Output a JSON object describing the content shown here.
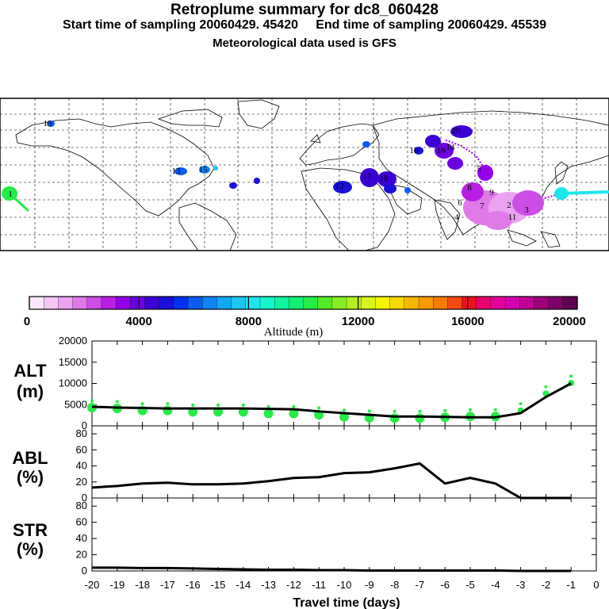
{
  "header": {
    "title": "Retroplume summary for dc8_060428",
    "subtitle": "Start time of sampling 20060429. 45420     End time of sampling 20060429. 45539",
    "meteo": "Meteorological data used is GFS"
  },
  "colorbar": {
    "label": "Altitude (m)",
    "ticks": [
      "0",
      "4000",
      "8000",
      "12000",
      "16000",
      "20000"
    ],
    "colors": [
      "#fbe6fb",
      "#f3c6f3",
      "#eba3f0",
      "#e07ae8",
      "#cc4ee6",
      "#b91fe3",
      "#9500ea",
      "#6d00e2",
      "#3b00d6",
      "#1a10dc",
      "#0030f0",
      "#0a5cf5",
      "#0f85f7",
      "#10a8f4",
      "#1ec6f2",
      "#1fe4ee",
      "#15f5cc",
      "#0ef4a0",
      "#12ef75",
      "#26ec48",
      "#54ec2a",
      "#86ee25",
      "#b5f01f",
      "#d9f41a",
      "#f8f500",
      "#f8d800",
      "#f8b800",
      "#f89a00",
      "#f87a00",
      "#f54a10",
      "#f01020",
      "#ea0070",
      "#e4009a",
      "#d400b0",
      "#c00096",
      "#a0007a",
      "#80006a",
      "#600050"
    ]
  },
  "map_labels": [
    {
      "text": "1"
    },
    {
      "text": "19"
    },
    {
      "text": "13"
    },
    {
      "text": "10"
    },
    {
      "text": "15"
    },
    {
      "text": "17"
    },
    {
      "text": "18"
    },
    {
      "text": "12"
    },
    {
      "text": "20"
    },
    {
      "text": "16"
    },
    {
      "text": "14"
    },
    {
      "text": "9"
    },
    {
      "text": "8"
    },
    {
      "text": "11"
    },
    {
      "text": "6"
    },
    {
      "text": "5"
    },
    {
      "text": "4"
    },
    {
      "text": "3"
    },
    {
      "text": "7"
    },
    {
      "text": "2"
    }
  ],
  "chart_data": {
    "type": "line",
    "x": [
      -20,
      -19,
      -18,
      -17,
      -16,
      -15,
      -14,
      -13,
      -12,
      -11,
      -10,
      -9,
      -8,
      -7,
      -6,
      -5,
      -4,
      -3,
      -2,
      -1
    ],
    "xlabel": "Travel time (days)",
    "x_tick_labels": [
      "-20",
      "-19",
      "-18",
      "-17",
      "-16",
      "-15",
      "-14",
      "-13",
      "-12",
      "-11",
      "-10",
      "-9",
      "-8",
      "-7",
      "-6",
      "-5",
      "-4",
      "-3",
      "-2",
      "-1",
      "0"
    ],
    "panels": [
      {
        "name": "ALT",
        "label_line1": "ALT",
        "label_line2": "(m)",
        "ylim": [
          0,
          20000
        ],
        "yticks": [
          "0",
          "5000",
          "10000",
          "15000",
          "20000"
        ],
        "series": [
          {
            "name": "mean altitude",
            "values": [
              4500,
              4300,
              4200,
              4100,
              4100,
              4100,
              4100,
              4000,
              3900,
              3400,
              3000,
              2600,
              2200,
              2200,
              2100,
              2000,
              2000,
              3000,
              6800,
              10000
            ]
          }
        ],
        "scatter_values": [
          4300,
          4100,
          3600,
          3600,
          3300,
          3300,
          3300,
          2900,
          2900,
          2600,
          2100,
          1900,
          1800,
          1800,
          2000,
          2200,
          2200,
          3600,
          7600,
          10100
        ]
      },
      {
        "name": "ABL",
        "label_line1": "ABL",
        "label_line2": "(%)",
        "ylim": [
          0,
          90
        ],
        "yticks": [
          "0",
          "20",
          "40",
          "60",
          "80"
        ],
        "series": [
          {
            "name": "boundary layer fraction",
            "values": [
              13,
              15,
              18,
              19,
              17,
              17,
              18,
              21,
              25,
              26,
              31,
              32,
              37,
              43,
              18,
              25,
              18,
              0,
              0,
              0
            ]
          }
        ]
      },
      {
        "name": "STR",
        "label_line1": "STR",
        "label_line2": "(%)",
        "ylim": [
          0,
          90
        ],
        "yticks": [
          "0",
          "20",
          "40",
          "60",
          "80"
        ],
        "series": [
          {
            "name": "stratosphere fraction",
            "values": [
              4,
              4,
              3.5,
              3.5,
              3,
              2.5,
              2,
              1.5,
              1.5,
              1,
              1,
              0.5,
              0.5,
              0.5,
              0.5,
              0.5,
              0.5,
              0,
              0,
              0
            ]
          }
        ]
      }
    ]
  }
}
